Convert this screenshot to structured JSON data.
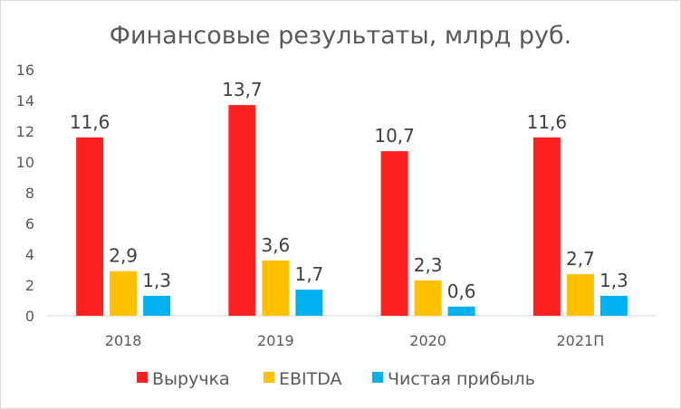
{
  "chart_data": {
    "type": "bar",
    "title": "Финансовые результаты, млрд руб.",
    "categories": [
      "2018",
      "2019",
      "2020",
      "2021П"
    ],
    "series": [
      {
        "name": "Выручка",
        "values": [
          11.6,
          13.7,
          10.7,
          11.6
        ],
        "labels": [
          "11,6",
          "13,7",
          "10,7",
          "11,6"
        ],
        "color": "#ff2020"
      },
      {
        "name": "EBITDA",
        "values": [
          2.9,
          3.6,
          2.3,
          2.7
        ],
        "labels": [
          "2,9",
          "3,6",
          "2,3",
          "2,7"
        ],
        "color": "#ffc000"
      },
      {
        "name": "Чистая прибыль",
        "values": [
          1.3,
          1.7,
          0.6,
          1.3
        ],
        "labels": [
          "1,3",
          "1,7",
          "0,6",
          "1,3"
        ],
        "color": "#00b0f0"
      }
    ],
    "ylim": [
      0,
      16
    ],
    "yticks": [
      "0",
      "2",
      "4",
      "6",
      "8",
      "10",
      "12",
      "14",
      "16"
    ],
    "grid": false,
    "legend": "bottom"
  }
}
